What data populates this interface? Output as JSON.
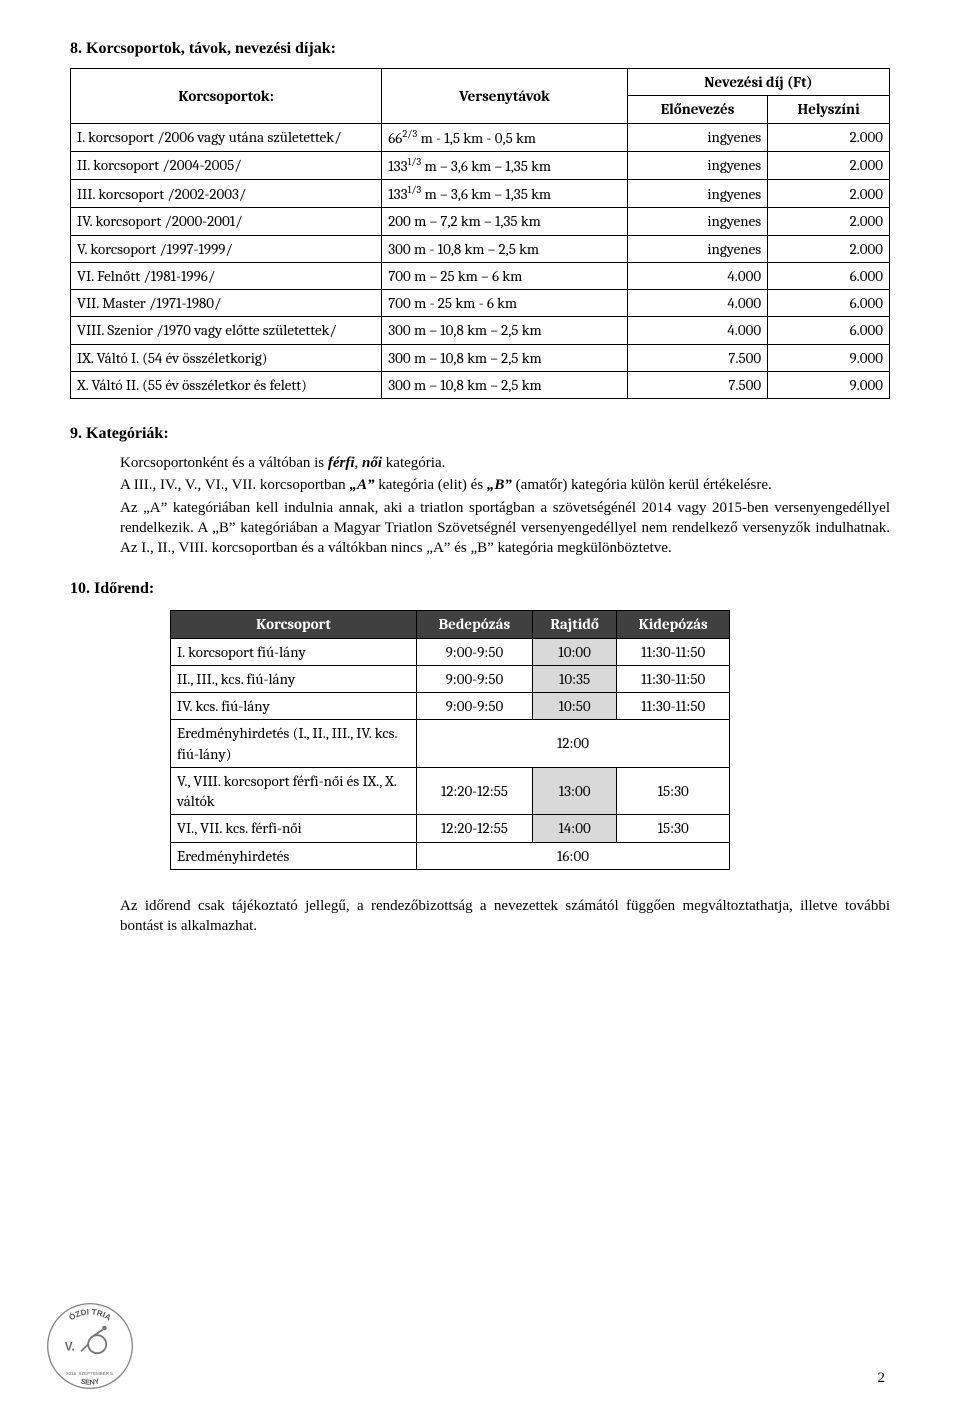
{
  "section8": {
    "heading": "8. Korcsoportok, távok, nevezési díjak:",
    "header": {
      "c1": "Korcsoportok:",
      "c2": "Versenytávok",
      "c3": "Nevezési díj (Ft)",
      "c3a": "Előnevezés",
      "c3b": "Helyszíni"
    },
    "rows": [
      {
        "name": "I. korcsoport    /2006 vagy utána születettek/",
        "dist_pre": "66",
        "dist_sup": "2/3",
        "dist_post": " m - 1,5 km - 0,5 km",
        "pre": "ingyenes",
        "hely": "2.000"
      },
      {
        "name": "II. korcsoport   /2004-2005/",
        "dist_pre": "133",
        "dist_sup": "1/3",
        "dist_post": " m – 3,6 km – 1,35 km",
        "pre": "ingyenes",
        "hely": "2.000"
      },
      {
        "name": "III. korcsoport /2002-2003/",
        "dist_pre": "133",
        "dist_sup": "1/3",
        "dist_post": " m – 3,6 km – 1,35 km",
        "pre": "ingyenes",
        "hely": "2.000"
      },
      {
        "name": "IV. korcsoport /2000-2001/",
        "dist_pre": "200 m – 7,2 km – 1,35 km",
        "dist_sup": "",
        "dist_post": "",
        "pre": "ingyenes",
        "hely": "2.000"
      },
      {
        "name": "V. korcsoport   /1997-1999/",
        "dist_pre": "300 m - 10,8 km – 2,5 km",
        "dist_sup": "",
        "dist_post": "",
        "pre": "ingyenes",
        "hely": "2.000"
      },
      {
        "name": "VI. Felnőtt         /1981-1996/",
        "dist_pre": "700 m – 25 km – 6 km",
        "dist_sup": "",
        "dist_post": "",
        "pre": "4.000",
        "hely": "6.000"
      },
      {
        "name": "VII. Master       /1971-1980/",
        "dist_pre": "700 m - 25 km - 6 km",
        "dist_sup": "",
        "dist_post": "",
        "pre": "4.000",
        "hely": "6.000"
      },
      {
        "name": "VIII. Szenior    /1970 vagy előtte születettek/",
        "dist_pre": "300 m – 10,8 km – 2,5 km",
        "dist_sup": "",
        "dist_post": "",
        "pre": "4.000",
        "hely": "6.000"
      },
      {
        "name": "IX. Váltó I. (54 év összéletkorig)",
        "dist_pre": "300 m – 10,8 km – 2,5 km",
        "dist_sup": "",
        "dist_post": "",
        "pre": "7.500",
        "hely": "9.000"
      },
      {
        "name": "X. Váltó II. (55 év összéletkor és felett)",
        "dist_pre": "300 m – 10,8 km – 2,5 km",
        "dist_sup": "",
        "dist_post": "",
        "pre": "7.500",
        "hely": "9.000"
      }
    ]
  },
  "section9": {
    "heading": "9. Kategóriák:",
    "p1_a": "Korcsoportonként és a váltóban is ",
    "p1_b": "férfi",
    "p1_c": ", ",
    "p1_d": "női",
    "p1_e": " kategória.",
    "p2_a": "A III., IV., V., VI., VII. korcsoportban ",
    "p2_b": "„A”",
    "p2_c": " kategória (elit) és ",
    "p2_d": "„B”",
    "p2_e": " (amatőr) kategória külön kerül értékelésre.",
    "p3": "Az „A” kategóriában kell indulnia annak, aki a triatlon sportágban a szövetségénél 2014 vagy 2015-ben versenyengedéllyel rendelkezik. A „B” kategóriában a Magyar Triatlon Szövetségnél versenyengedéllyel nem rendelkező versenyzők indulhatnak. Az I., II., VIII. korcsoportban és  a váltókban nincs „A” és „B” kategória megkülönböztetve."
  },
  "section10": {
    "heading": "10. Időrend:",
    "header": {
      "c1": "Korcsoport",
      "c2": "Bedepózás",
      "c3": "Rajtidő",
      "c4": "Kidepózás"
    },
    "rows": [
      {
        "c1": "I. korcsoport fiú-lány",
        "c2": "9:00-9:50",
        "c3": "10:00",
        "c4": "11:30-11:50"
      },
      {
        "c1": "II., III., kcs. fiú-lány",
        "c2": "9:00-9:50",
        "c3": "10:35",
        "c4": "11:30-11:50"
      },
      {
        "c1": "IV. kcs. fiú-lány",
        "c2": "9:00-9:50",
        "c3": "10:50",
        "c4": "11:30-11:50"
      },
      {
        "c1": "Eredményhirdetés (I., II., III., IV. kcs. fiú-lány)",
        "c2": "",
        "c3": "12:00",
        "c4": "",
        "merge": true
      },
      {
        "c1": "V., VIII. korcsoport férfi-női és IX., X. váltók",
        "c2": "12:20-12:55",
        "c3": "13:00",
        "c4": "15:30"
      },
      {
        "c1": "VI., VII. kcs. férfi-női",
        "c2": "12:20-12:55",
        "c3": "14:00",
        "c4": "15:30"
      },
      {
        "c1": "Eredményhirdetés",
        "c2": "",
        "c3": "16:00",
        "c4": "",
        "merge": true
      }
    ],
    "footer": "Az időrend csak tájékoztató jellegű, a rendezőbizottság a nevezettek számától függően megváltoztathatja, illetve további bontást is alkalmazhat."
  },
  "page": "2",
  "logo": {
    "top_text": "ÓZDI TRIA",
    "mid_text": "V.",
    "bottom_text": "SENY",
    "date": "2015. SZEPTEMBER 5."
  }
}
